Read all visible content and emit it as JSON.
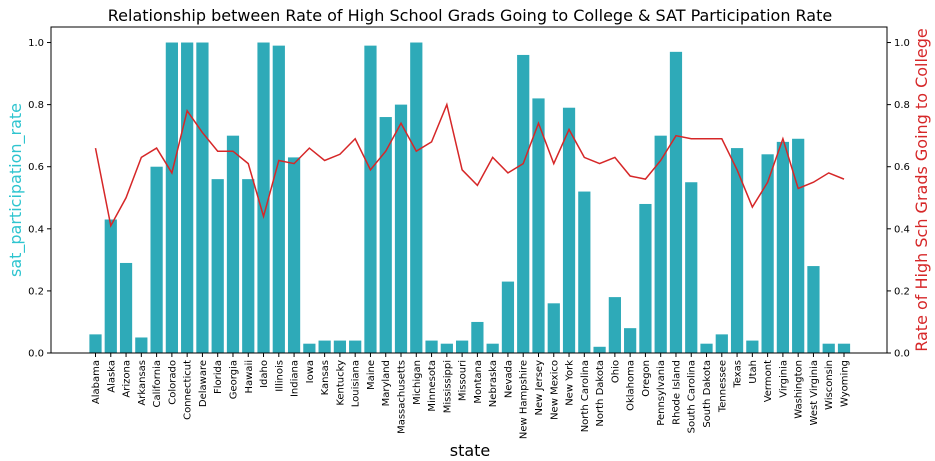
{
  "chart_data": {
    "type": "bar",
    "title": "Relationship between Rate of High School Grads Going to College & SAT Participation Rate",
    "xlabel": "state",
    "ylabel_left": "sat_participation_rate",
    "ylabel_right": "Rate of High Sch Grads Going to College",
    "ylim_left": [
      0,
      1.05
    ],
    "ylim_right": [
      0,
      1.05
    ],
    "yticks": [
      "0.0",
      "0.2",
      "0.4",
      "0.6",
      "0.8",
      "1.0"
    ],
    "grid": false,
    "colors": {
      "bars": "#2eaab8",
      "line": "#d62728",
      "left_label": "#2ec4cf",
      "right_label": "#d62728"
    },
    "categories": [
      "Alabama",
      "Alaska",
      "Arizona",
      "Arkansas",
      "California",
      "Colorado",
      "Connecticut",
      "Delaware",
      "Florida",
      "Georgia",
      "Hawaii",
      "Idaho",
      "Illinois",
      "Indiana",
      "Iowa",
      "Kansas",
      "Kentucky",
      "Louisiana",
      "Maine",
      "Maryland",
      "Massachusetts",
      "Michigan",
      "Minnesota",
      "Mississippi",
      "Missouri",
      "Montana",
      "Nebraska",
      "Nevada",
      "New Hampshire",
      "New Jersey",
      "New Mexico",
      "New York",
      "North Carolina",
      "North Dakota",
      "Ohio",
      "Oklahoma",
      "Oregon",
      "Pennsylvania",
      "Rhode Island",
      "South Carolina",
      "South Dakota",
      "Tennessee",
      "Texas",
      "Utah",
      "Vermont",
      "Virginia",
      "Washington",
      "West Virginia",
      "Wisconsin",
      "Wyoming"
    ],
    "series": [
      {
        "kind": "bar",
        "axis": "left",
        "values": [
          0.06,
          0.43,
          0.29,
          0.05,
          0.6,
          1.0,
          1.0,
          1.0,
          0.56,
          0.7,
          0.56,
          1.0,
          0.99,
          0.63,
          0.03,
          0.04,
          0.04,
          0.04,
          0.99,
          0.76,
          0.8,
          1.0,
          0.04,
          0.03,
          0.04,
          0.1,
          0.03,
          0.23,
          0.96,
          0.82,
          0.16,
          0.79,
          0.52,
          0.02,
          0.18,
          0.08,
          0.48,
          0.7,
          0.97,
          0.55,
          0.03,
          0.06,
          0.66,
          0.04,
          0.64,
          0.68,
          0.69,
          0.28,
          0.03,
          0.03
        ]
      },
      {
        "kind": "line",
        "axis": "right",
        "values": [
          0.66,
          0.41,
          0.5,
          0.63,
          0.66,
          0.58,
          0.78,
          0.71,
          0.65,
          0.65,
          0.61,
          0.44,
          0.62,
          0.61,
          0.66,
          0.62,
          0.64,
          0.69,
          0.59,
          0.65,
          0.74,
          0.65,
          0.68,
          0.8,
          0.59,
          0.54,
          0.63,
          0.58,
          0.61,
          0.74,
          0.61,
          0.72,
          0.63,
          0.61,
          0.63,
          0.57,
          0.56,
          0.62,
          0.7,
          0.69,
          0.69,
          0.69,
          0.59,
          0.47,
          0.55,
          0.69,
          0.53,
          0.55,
          0.58,
          0.56
        ]
      }
    ]
  }
}
